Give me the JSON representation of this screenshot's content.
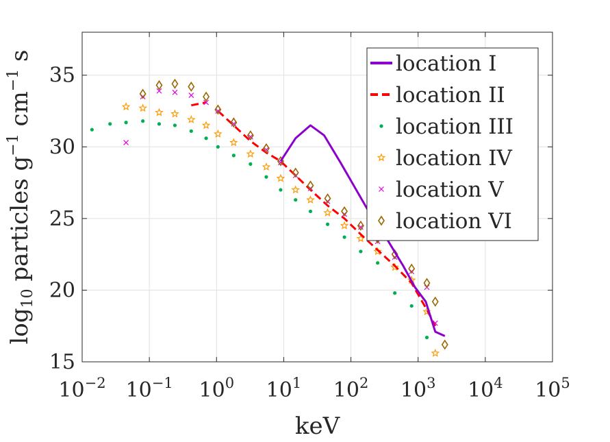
{
  "chart_data": {
    "type": "scatter",
    "title": "",
    "xlabel": "keV",
    "ylabel_parts": {
      "base": "log",
      "sub": "10",
      "mid": " particles g",
      "sup1": "−1",
      "mid2": " cm",
      "sup2": "−1",
      "end": " s"
    },
    "x_scale": "log",
    "xlim": [
      0.01,
      100000
    ],
    "ylim": [
      15,
      38
    ],
    "grid": true,
    "legend_position": "top-right",
    "x_ticks": [
      {
        "value": 0.01,
        "base": "10",
        "exp": "−2"
      },
      {
        "value": 0.1,
        "base": "10",
        "exp": "−1"
      },
      {
        "value": 1,
        "base": "10",
        "exp": "0"
      },
      {
        "value": 10,
        "base": "10",
        "exp": "1"
      },
      {
        "value": 100,
        "base": "10",
        "exp": "2"
      },
      {
        "value": 1000,
        "base": "10",
        "exp": "3"
      },
      {
        "value": 10000,
        "base": "10",
        "exp": "4"
      },
      {
        "value": 100000,
        "base": "10",
        "exp": "5"
      }
    ],
    "y_ticks": [
      {
        "value": 15,
        "label": "15"
      },
      {
        "value": 20,
        "label": "20"
      },
      {
        "value": 25,
        "label": "25"
      },
      {
        "value": 30,
        "label": "30"
      },
      {
        "value": 35,
        "label": "35"
      }
    ],
    "series": [
      {
        "name": "location I",
        "style": "line",
        "color": "#8B00CC",
        "x": [
          9.0,
          15.0,
          25.0,
          40.0,
          70.0,
          120.0,
          200.0,
          350.0,
          600.0,
          900.0,
          1300.0,
          1800.0,
          2500.0
        ],
        "y": [
          29.0,
          30.6,
          31.5,
          30.8,
          28.9,
          27.0,
          25.2,
          23.5,
          21.7,
          20.2,
          19.2,
          17.1,
          16.8
        ]
      },
      {
        "name": "location II",
        "style": "dashed",
        "color": "#FF0000",
        "segments": [
          {
            "x": [
              0.42,
              0.7
            ],
            "y": [
              32.9,
              33.1
            ]
          },
          {
            "x": [
              1.05,
              1.8,
              3.2,
              5.5,
              9.0,
              15.0,
              25.0,
              45.0,
              80.0,
              140.0,
              250.0,
              450.0,
              800.0,
              1400.0,
              1800.0
            ],
            "y": [
              32.5,
              31.5,
              30.4,
              29.6,
              29.0,
              28.0,
              27.0,
              25.9,
              25.0,
              23.9,
              22.8,
              21.7,
              20.5,
              18.5,
              17.5
            ]
          }
        ]
      },
      {
        "name": "location III",
        "style": "dot",
        "color": "#00B050",
        "x": [
          0.014,
          0.026,
          0.045,
          0.08,
          0.14,
          0.24,
          0.42,
          0.7,
          1.05,
          1.8,
          3.2,
          5.5,
          9.0,
          15.0,
          25.0,
          45.0,
          80.0,
          140.0,
          250.0,
          450.0,
          800.0,
          1350.0
        ],
        "y": [
          31.2,
          31.6,
          31.7,
          31.8,
          31.6,
          31.5,
          31.1,
          30.6,
          30.0,
          29.4,
          28.8,
          27.9,
          27.0,
          26.3,
          25.5,
          24.6,
          23.7,
          22.7,
          21.9,
          19.8,
          18.9,
          16.7
        ]
      },
      {
        "name": "location IV",
        "style": "star",
        "color": "#FF9900",
        "x": [
          0.045,
          0.08,
          0.14,
          0.24,
          0.42,
          0.7,
          1.05,
          1.8,
          3.2,
          5.5,
          9.0,
          15.0,
          25.0,
          45.0,
          80.0,
          140.0,
          250.0,
          450.0,
          800.0,
          1350.0,
          1800.0
        ],
        "y": [
          32.8,
          32.7,
          32.4,
          32.3,
          31.9,
          31.5,
          30.9,
          30.3,
          29.5,
          28.6,
          27.8,
          27.0,
          26.3,
          25.4,
          24.5,
          23.6,
          22.7,
          21.6,
          20.7,
          18.5,
          15.6
        ]
      },
      {
        "name": "location V",
        "style": "x",
        "color": "#E000E0",
        "x": [
          0.045,
          0.08,
          0.14,
          0.24,
          0.42,
          0.7,
          1.05,
          1.8,
          3.2,
          5.5,
          9.0,
          15.0,
          25.0,
          45.0,
          80.0,
          140.0,
          250.0,
          450.0,
          800.0,
          1350.0,
          1800.0
        ],
        "y": [
          30.3,
          33.5,
          33.9,
          33.8,
          33.6,
          33.1,
          32.5,
          31.6,
          30.7,
          29.8,
          28.9,
          28.0,
          27.1,
          26.2,
          25.3,
          24.4,
          23.4,
          22.3,
          21.3,
          20.2,
          17.7
        ]
      },
      {
        "name": "location VI",
        "style": "diamond",
        "color": "#996600",
        "x": [
          0.08,
          0.14,
          0.24,
          0.42,
          0.7,
          1.05,
          1.8,
          3.2,
          5.5,
          9.0,
          15.0,
          25.0,
          45.0,
          80.0,
          140.0,
          250.0,
          450.0,
          800.0,
          1350.0,
          1800.0,
          2500.0
        ],
        "y": [
          33.7,
          34.3,
          34.4,
          34.2,
          33.5,
          32.6,
          31.7,
          30.8,
          29.9,
          29.0,
          28.2,
          27.3,
          26.4,
          25.5,
          24.5,
          23.6,
          22.5,
          21.5,
          20.5,
          19.2,
          16.2
        ]
      }
    ]
  }
}
